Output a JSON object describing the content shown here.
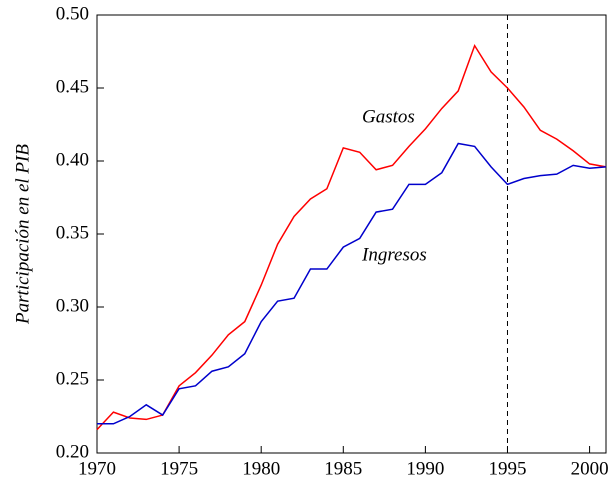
{
  "chart_data": {
    "type": "line",
    "y_label": "Participación en el PIB",
    "x": [
      1970,
      1971,
      1972,
      1973,
      1974,
      1975,
      1976,
      1977,
      1978,
      1979,
      1980,
      1981,
      1982,
      1983,
      1984,
      1985,
      1986,
      1987,
      1988,
      1989,
      1990,
      1991,
      1992,
      1993,
      1994,
      1995,
      1996,
      1997,
      1998,
      1999,
      2000,
      2001
    ],
    "series": [
      {
        "name": "Gastos",
        "color": "#ff0000",
        "values": [
          0.216,
          0.228,
          0.224,
          0.223,
          0.226,
          0.246,
          0.255,
          0.267,
          0.281,
          0.29,
          0.315,
          0.343,
          0.362,
          0.374,
          0.381,
          0.409,
          0.406,
          0.394,
          0.397,
          0.41,
          0.422,
          0.436,
          0.448,
          0.479,
          0.461,
          0.45,
          0.437,
          0.421,
          0.415,
          0.407,
          0.398,
          0.396
        ]
      },
      {
        "name": "Ingresos",
        "color": "#0000cc",
        "values": [
          0.22,
          0.22,
          0.225,
          0.233,
          0.226,
          0.244,
          0.246,
          0.256,
          0.259,
          0.268,
          0.29,
          0.304,
          0.306,
          0.326,
          0.326,
          0.341,
          0.347,
          0.365,
          0.367,
          0.384,
          0.384,
          0.392,
          0.412,
          0.41,
          0.396,
          0.384,
          0.388,
          0.39,
          0.391,
          0.397,
          0.395,
          0.396
        ]
      }
    ],
    "xlim": [
      1970,
      2001
    ],
    "xticks": [
      1970,
      1975,
      1980,
      1985,
      1990,
      1995,
      2000
    ],
    "ylim": [
      0.2,
      0.5
    ],
    "yticks": [
      {
        "value": 0.2,
        "label": "0.20"
      },
      0.25,
      {
        "value": 0.3,
        "label": "0.30"
      },
      0.35,
      {
        "value": 0.4,
        "label": "0.40"
      },
      0.45,
      {
        "value": 0.5,
        "label": "0.50"
      }
    ],
    "vline": 1995,
    "grid": false
  }
}
